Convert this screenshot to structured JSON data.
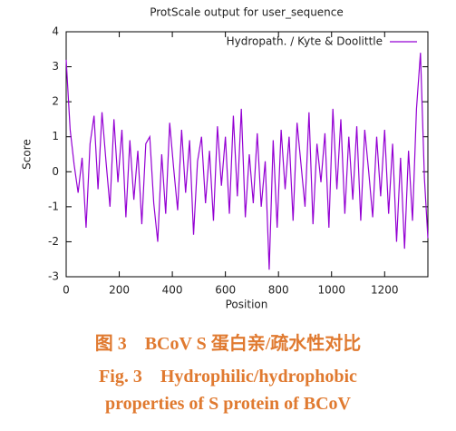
{
  "chart_data": {
    "type": "line",
    "title": "ProtScale output for user_sequence",
    "x_label": "Position",
    "y_label": "Score",
    "xlim": [
      0,
      1363
    ],
    "ylim": [
      -3,
      4
    ],
    "xticks": [
      0,
      200,
      400,
      600,
      800,
      1000,
      1200
    ],
    "yticks": [
      -3,
      -2,
      -1,
      0,
      1,
      2,
      3,
      4
    ],
    "grid": false,
    "legend_position": "top-right",
    "x": [
      0,
      15,
      30,
      45,
      60,
      75,
      90,
      105,
      120,
      135,
      150,
      165,
      180,
      195,
      210,
      225,
      240,
      255,
      270,
      285,
      300,
      315,
      330,
      345,
      360,
      375,
      390,
      405,
      420,
      435,
      450,
      465,
      480,
      495,
      510,
      525,
      540,
      555,
      570,
      585,
      600,
      615,
      630,
      645,
      660,
      675,
      690,
      705,
      720,
      735,
      750,
      765,
      780,
      795,
      810,
      825,
      840,
      855,
      870,
      885,
      900,
      915,
      930,
      945,
      960,
      975,
      990,
      1005,
      1020,
      1035,
      1050,
      1065,
      1080,
      1095,
      1110,
      1125,
      1140,
      1155,
      1170,
      1185,
      1200,
      1215,
      1230,
      1245,
      1260,
      1275,
      1290,
      1305,
      1320,
      1335,
      1350,
      1363
    ],
    "series": [
      {
        "name": "Hydropath. / Kyte & Doolittle",
        "color": "#9400d3",
        "values": [
          3.2,
          1.2,
          0.2,
          -0.6,
          0.4,
          -1.6,
          0.8,
          1.6,
          -0.5,
          1.7,
          0.3,
          -1.0,
          1.5,
          -0.3,
          1.2,
          -1.3,
          0.9,
          -0.8,
          0.6,
          -1.5,
          0.8,
          1.0,
          -0.9,
          -2.0,
          0.5,
          -1.2,
          1.4,
          0.1,
          -1.1,
          1.2,
          -0.6,
          0.9,
          -1.8,
          0.3,
          1.0,
          -0.9,
          0.6,
          -1.4,
          1.3,
          -0.4,
          1.0,
          -1.2,
          1.6,
          -0.7,
          1.8,
          -1.3,
          0.5,
          -0.9,
          1.1,
          -1.0,
          0.3,
          -2.8,
          0.9,
          -1.6,
          1.2,
          -0.5,
          1.0,
          -1.4,
          1.4,
          0.2,
          -1.0,
          1.7,
          -1.5,
          0.8,
          -0.3,
          1.1,
          -1.6,
          1.8,
          -0.5,
          1.5,
          -1.2,
          1.0,
          -0.8,
          1.3,
          -1.4,
          1.2,
          0.0,
          -1.3,
          1.0,
          -0.7,
          1.2,
          -1.2,
          0.8,
          -2.0,
          0.4,
          -2.2,
          0.6,
          -1.4,
          1.8,
          3.4,
          -0.2,
          -1.9
        ]
      }
    ]
  },
  "caption": [
    "图 3　BCoV S 蛋白亲/疏水性对比",
    "Fig. 3　Hydrophilic/hydrophobic",
    "properties of S protein of BCoV"
  ]
}
